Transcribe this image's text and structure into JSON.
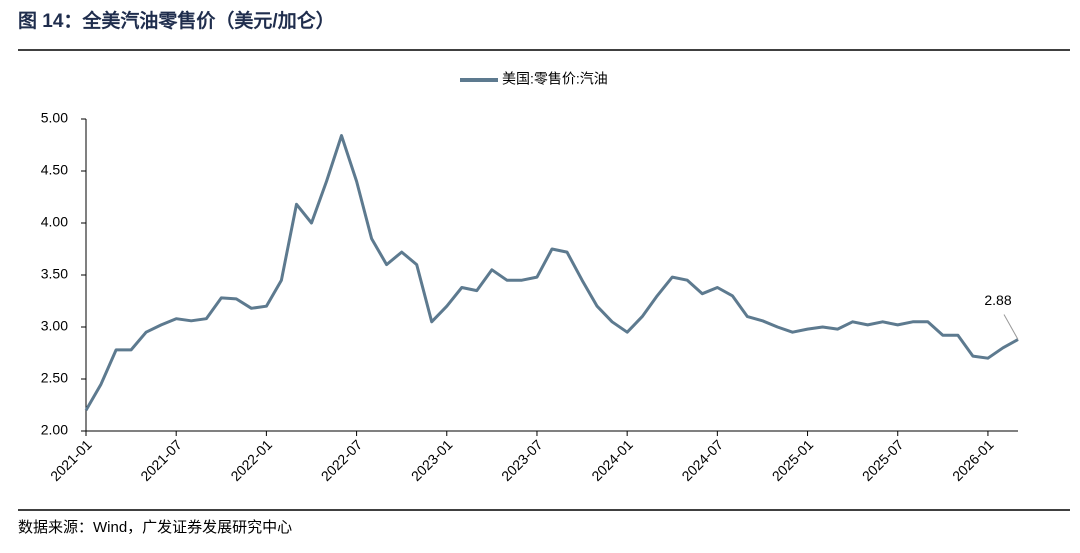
{
  "chart_data": {
    "type": "line",
    "title": "图 14：全美汽油零售价（美元/加仑）",
    "source": "数据来源：Wind，广发证券发展研究中心",
    "x": [
      "2021-01",
      "2021-02",
      "2021-03",
      "2021-04",
      "2021-05",
      "2021-06",
      "2021-07",
      "2021-08",
      "2021-09",
      "2021-10",
      "2021-11",
      "2021-12",
      "2022-01",
      "2022-02",
      "2022-03",
      "2022-04",
      "2022-05",
      "2022-06",
      "2022-07",
      "2022-08",
      "2022-09",
      "2022-10",
      "2022-11",
      "2022-12",
      "2023-01",
      "2023-02",
      "2023-03",
      "2023-04",
      "2023-05",
      "2023-06",
      "2023-07",
      "2023-08",
      "2023-09",
      "2023-10",
      "2023-11",
      "2023-12",
      "2024-01",
      "2024-02",
      "2024-03",
      "2024-04",
      "2024-05",
      "2024-06",
      "2024-07",
      "2024-08",
      "2024-09",
      "2024-10",
      "2024-11",
      "2024-12",
      "2025-01",
      "2025-02",
      "2025-03",
      "2025-04",
      "2025-05",
      "2025-06",
      "2025-07",
      "2025-08",
      "2025-09",
      "2025-10",
      "2025-11",
      "2025-12",
      "2026-01",
      "2026-02",
      "2026-03"
    ],
    "series": [
      {
        "name": "美国:零售价:汽油",
        "color": "#5d7a8f",
        "values": [
          2.2,
          2.45,
          2.78,
          2.78,
          2.95,
          3.02,
          3.08,
          3.06,
          3.08,
          3.28,
          3.27,
          3.18,
          3.2,
          3.45,
          4.18,
          4.0,
          4.4,
          4.84,
          4.4,
          3.85,
          3.6,
          3.72,
          3.6,
          3.05,
          3.2,
          3.38,
          3.35,
          3.55,
          3.45,
          3.45,
          3.48,
          3.75,
          3.72,
          3.45,
          3.2,
          3.05,
          2.95,
          3.1,
          3.3,
          3.48,
          3.45,
          3.32,
          3.38,
          3.3,
          3.1,
          3.06,
          3.0,
          2.95,
          2.98,
          3.0,
          2.98,
          3.05,
          3.02,
          3.05,
          3.02,
          3.05,
          3.05,
          2.92,
          2.92,
          2.72,
          2.7,
          2.8,
          2.88
        ],
        "end_label": "2.88"
      }
    ],
    "xlim": [
      "2021-01",
      "2026-03"
    ],
    "xticks": [
      "2021-01",
      "2021-07",
      "2022-01",
      "2022-07",
      "2023-01",
      "2023-07",
      "2024-01",
      "2024-07",
      "2025-01",
      "2025-07",
      "2026-01"
    ],
    "ylim": [
      2,
      5
    ],
    "yticks": [
      {
        "value": 2,
        "label": "2.00"
      },
      {
        "value": 2.5,
        "label": "2.50"
      },
      {
        "value": 3,
        "label": "3.00"
      },
      {
        "value": 3.5,
        "label": "3.50"
      },
      {
        "value": 4,
        "label": "4.00"
      },
      {
        "value": 4.5,
        "label": "4.50"
      },
      {
        "value": 5,
        "label": "5.00"
      }
    ],
    "grid": false,
    "legend": "top"
  }
}
